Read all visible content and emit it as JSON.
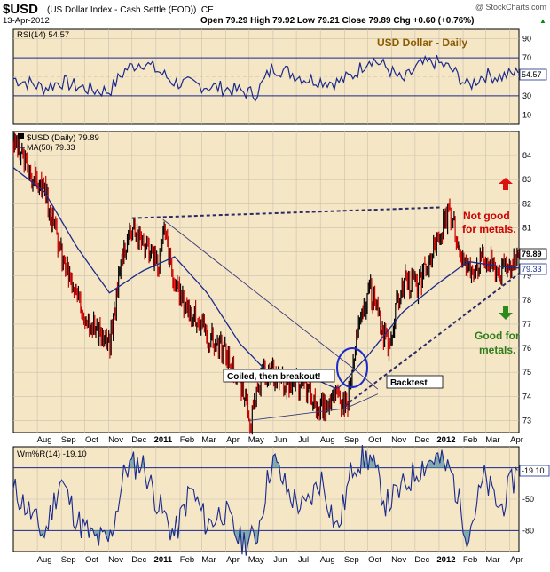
{
  "header": {
    "symbol": "$USD",
    "description": "(US Dollar Index - Cash Settle (EOD))  ICE",
    "watermark": "@ StockCharts.com",
    "date": "13-Apr-2012",
    "ohlc": "Open 79.29  High 79.92  Low 79.21  Close 79.89  Chg +0.60 (+0.76%)",
    "ohlc_up_arrow": "▲"
  },
  "panels": {
    "rsi": {
      "label": "RSI(14) 54.57",
      "title": "USD Dollar - Daily",
      "current_label": "54.57"
    },
    "price": {
      "label": "$USD (Daily) 79.89",
      "ma_label": "MA(50) 79.33",
      "close_label": "79.89",
      "ma_value_label": "79.33"
    },
    "wr": {
      "label": "Wm%R(14) -19.10",
      "current_label": "-19.10"
    }
  },
  "annotations": {
    "coiled": "Coiled, then breakout!",
    "backtest": "Backtest",
    "not_good_1": "Not good",
    "not_good_2": "for metals.",
    "good_1": "Good for",
    "good_2": "metals."
  },
  "colors": {
    "panel_bg": "#f5e6c6",
    "grid": "#c9c0ad",
    "series": "#1a2a8c",
    "up_bar": "#000000",
    "down_bar": "#cc0000",
    "title_text": "#8b5a00",
    "red_note": "#cc0000",
    "green_note": "#2e7d1a",
    "wr_fill": "#6f9faa"
  },
  "chart_data": [
    {
      "type": "line",
      "panel": "rsi",
      "name": "RSI(14)",
      "ylim": [
        0,
        100
      ],
      "y_ticks": [
        10,
        30,
        50,
        70,
        90
      ],
      "reference_lines": [
        30,
        70
      ],
      "last_value": 54.57,
      "x_dates": [
        "2010-07-01",
        "2010-07-20",
        "2010-08-10",
        "2010-08-31",
        "2010-09-21",
        "2010-10-12",
        "2010-11-02",
        "2010-11-23",
        "2010-12-14",
        "2011-01-04",
        "2011-01-25",
        "2011-02-15",
        "2011-03-08",
        "2011-03-29",
        "2011-04-19",
        "2011-05-10",
        "2011-05-31",
        "2011-06-21",
        "2011-07-12",
        "2011-08-02",
        "2011-08-23",
        "2011-09-13",
        "2011-10-04",
        "2011-10-25",
        "2011-11-15",
        "2011-12-06",
        "2011-12-27",
        "2012-01-17",
        "2012-02-07",
        "2012-02-28",
        "2012-03-20",
        "2012-04-13"
      ],
      "values": [
        48,
        44,
        38,
        45,
        40,
        36,
        35,
        58,
        66,
        56,
        44,
        42,
        40,
        38,
        35,
        32,
        60,
        55,
        48,
        46,
        44,
        52,
        70,
        60,
        45,
        62,
        66,
        58,
        40,
        52,
        50,
        54.57
      ]
    },
    {
      "type": "line",
      "panel": "price",
      "series": [
        {
          "name": "$USD (Daily)",
          "last_value": 79.89,
          "x_dates": [
            "2010-07-01",
            "2010-07-20",
            "2010-08-10",
            "2010-08-31",
            "2010-09-21",
            "2010-10-12",
            "2010-11-02",
            "2010-11-16",
            "2010-11-30",
            "2010-12-14",
            "2011-01-04",
            "2011-01-12",
            "2011-01-25",
            "2011-02-15",
            "2011-03-08",
            "2011-03-29",
            "2011-04-19",
            "2011-05-04",
            "2011-05-17",
            "2011-05-31",
            "2011-06-21",
            "2011-07-12",
            "2011-07-27",
            "2011-08-23",
            "2011-09-05",
            "2011-09-19",
            "2011-10-04",
            "2011-10-27",
            "2011-11-15",
            "2011-12-06",
            "2011-12-27",
            "2012-01-13",
            "2012-02-07",
            "2012-02-28",
            "2012-03-20",
            "2012-04-13"
          ],
          "values": [
            84.5,
            83.5,
            82.5,
            80,
            78,
            77,
            76,
            79.5,
            81.2,
            80.5,
            79.5,
            81,
            78.5,
            77.5,
            76.5,
            76,
            74.5,
            73,
            74.8,
            75,
            74.5,
            74.5,
            73.5,
            74,
            73.8,
            76.8,
            78.5,
            76,
            78.8,
            78.6,
            80.2,
            81.6,
            79.2,
            79.8,
            79.2,
            79.89
          ]
        },
        {
          "name": "MA(50)",
          "last_value": 79.33,
          "x_dates": [
            "2010-07-01",
            "2010-08-10",
            "2010-09-21",
            "2010-11-02",
            "2010-12-14",
            "2011-01-25",
            "2011-03-08",
            "2011-04-19",
            "2011-05-31",
            "2011-07-12",
            "2011-08-23",
            "2011-10-04",
            "2011-11-15",
            "2011-12-27",
            "2012-02-07",
            "2012-03-20",
            "2012-04-13"
          ],
          "values": [
            83.5,
            82.5,
            80.2,
            78.3,
            79.2,
            79.8,
            78.3,
            76.2,
            74.8,
            74.9,
            74.3,
            75.8,
            77.5,
            78.6,
            79.6,
            79.4,
            79.33
          ]
        }
      ],
      "ylim": [
        72.5,
        85
      ],
      "y_ticks": [
        73,
        74,
        75,
        76,
        77,
        78,
        79,
        80,
        81,
        82,
        83,
        84
      ],
      "trendlines": [
        {
          "label": "resistance (dotted)",
          "points": [
            [
              "2010-12-01",
              81.4
            ],
            [
              "2012-01-05",
              81.85
            ]
          ]
        },
        {
          "label": "support (dotted)",
          "points": [
            [
              "2011-09-01",
              73.6
            ],
            [
              "2012-04-13",
              79.1
            ]
          ]
        },
        {
          "label": "upper triangle",
          "points": [
            [
              "2011-01-10",
              81.35
            ],
            [
              "2011-09-15",
              75.1
            ],
            [
              "2011-10-14",
              74.3
            ]
          ]
        },
        {
          "label": "lower triangle",
          "points": [
            [
              "2011-05-01",
              73.0
            ],
            [
              "2011-09-02",
              73.5
            ],
            [
              "2011-10-14",
              74.1
            ]
          ]
        }
      ],
      "x_tick_labels": [
        "Aug",
        "Sep",
        "Oct",
        "Nov",
        "Dec",
        "2011",
        "Feb",
        "Mar",
        "Apr",
        "May",
        "Jun",
        "Jul",
        "Aug",
        "Sep",
        "Oct",
        "Nov",
        "Dec",
        "2012",
        "Feb",
        "Mar",
        "Apr"
      ]
    },
    {
      "type": "area",
      "panel": "williams_r",
      "name": "Wm%R(14)",
      "ylim": [
        -100,
        0
      ],
      "y_ticks": [
        -20,
        -50,
        -80
      ],
      "last_value": -19.1,
      "x_dates": [
        "2010-07-01",
        "2010-07-20",
        "2010-08-10",
        "2010-08-31",
        "2010-09-21",
        "2010-10-12",
        "2010-11-02",
        "2010-11-23",
        "2010-12-14",
        "2011-01-04",
        "2011-01-25",
        "2011-02-15",
        "2011-03-08",
        "2011-03-29",
        "2011-04-19",
        "2011-05-10",
        "2011-05-31",
        "2011-06-21",
        "2011-07-12",
        "2011-08-02",
        "2011-08-23",
        "2011-09-13",
        "2011-10-04",
        "2011-10-25",
        "2011-11-15",
        "2011-12-06",
        "2011-12-27",
        "2012-01-17",
        "2012-02-07",
        "2012-02-28",
        "2012-03-20",
        "2012-04-13"
      ],
      "values": [
        -40,
        -60,
        -85,
        -30,
        -70,
        -88,
        -90,
        -20,
        -15,
        -55,
        -85,
        -40,
        -75,
        -60,
        -90,
        -88,
        -10,
        -45,
        -60,
        -30,
        -80,
        -15,
        -10,
        -55,
        -40,
        -20,
        -10,
        -25,
        -85,
        -30,
        -60,
        -19.1
      ]
    }
  ]
}
